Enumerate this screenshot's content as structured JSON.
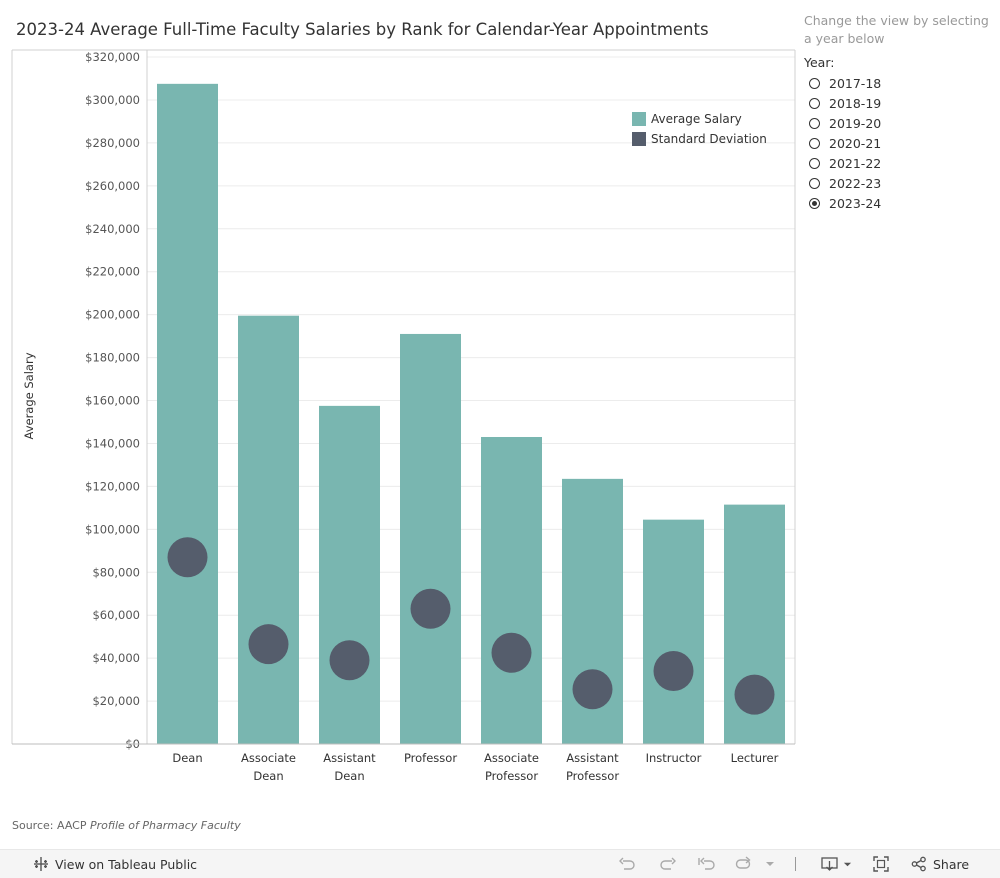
{
  "title": "2023-24 Average Full-Time Faculty Salaries by Rank for Calendar-Year Appointments",
  "sidebar": {
    "instructions": "Change the view by selecting a year below",
    "year_label": "Year:",
    "years": [
      "2017-18",
      "2018-19",
      "2019-20",
      "2020-21",
      "2021-22",
      "2022-23",
      "2023-24"
    ],
    "selected_year": "2023-24"
  },
  "source": {
    "prefix": "Source: AACP",
    "publication": "Profile of Pharmacy Faculty"
  },
  "toolbar": {
    "view_label": "View on Tableau Public",
    "share_label": "Share"
  },
  "colors": {
    "average_salary": "#79b6b0",
    "standard_deviation": "#555d6c"
  },
  "chart_data": {
    "type": "bar",
    "title": "2023-24 Average Full-Time Faculty Salaries by Rank for Calendar-Year Appointments",
    "ylabel": "Average Salary",
    "xlabel": "",
    "ylim": [
      0,
      320000
    ],
    "yticks": [
      0,
      20000,
      40000,
      60000,
      80000,
      100000,
      120000,
      140000,
      160000,
      180000,
      200000,
      220000,
      240000,
      260000,
      280000,
      300000,
      320000
    ],
    "ytick_labels": [
      "$0",
      "$20,000",
      "$40,000",
      "$60,000",
      "$80,000",
      "$100,000",
      "$120,000",
      "$140,000",
      "$160,000",
      "$180,000",
      "$200,000",
      "$220,000",
      "$240,000",
      "$260,000",
      "$280,000",
      "$300,000",
      "$320,000"
    ],
    "categories": [
      [
        "Dean"
      ],
      [
        "Associate",
        "Dean"
      ],
      [
        "Assistant",
        "Dean"
      ],
      [
        "Professor"
      ],
      [
        "Associate",
        "Professor"
      ],
      [
        "Assistant",
        "Professor"
      ],
      [
        "Instructor"
      ],
      [
        "Lecturer"
      ]
    ],
    "series": [
      {
        "name": "Average Salary",
        "mark": "bar",
        "values": [
          307500,
          199500,
          157500,
          191000,
          143000,
          123500,
          104500,
          111500
        ]
      },
      {
        "name": "Standard Deviation",
        "mark": "circle",
        "values": [
          87000,
          46500,
          39000,
          63000,
          42500,
          25500,
          34000,
          23000
        ]
      }
    ],
    "grid": true,
    "legend_position": "top-right"
  }
}
